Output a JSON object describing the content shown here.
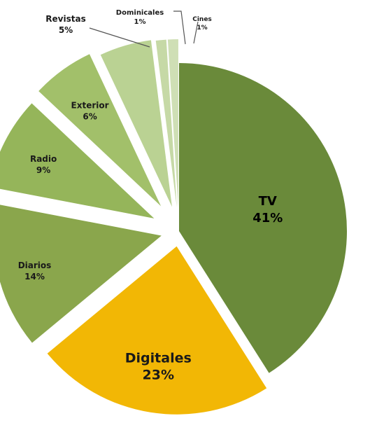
{
  "chart_data": {
    "type": "pie",
    "title": "",
    "slices": [
      {
        "label": "TV",
        "value": 41,
        "display": "41%",
        "color": "#6a8a3a"
      },
      {
        "label": "Digitales",
        "value": 23,
        "display": "23%",
        "color": "#f2b705"
      },
      {
        "label": "Diarios",
        "value": 14,
        "display": "14%",
        "color": "#8aa64c"
      },
      {
        "label": "Radio",
        "value": 9,
        "display": "9%",
        "color": "#95b55a"
      },
      {
        "label": "Exterior",
        "value": 6,
        "display": "6%",
        "color": "#a2c06a"
      },
      {
        "label": "Revistas",
        "value": 5,
        "display": "5%",
        "color": "#bad293"
      },
      {
        "label": "Dominicales",
        "value": 1,
        "display": "1%",
        "color": "#c6d9a6"
      },
      {
        "label": "Cines",
        "value": 1,
        "display": "1%",
        "color": "#cfdfb5"
      }
    ],
    "start_position": "top",
    "direction": "clockwise",
    "exploded": true,
    "legend": "none"
  }
}
